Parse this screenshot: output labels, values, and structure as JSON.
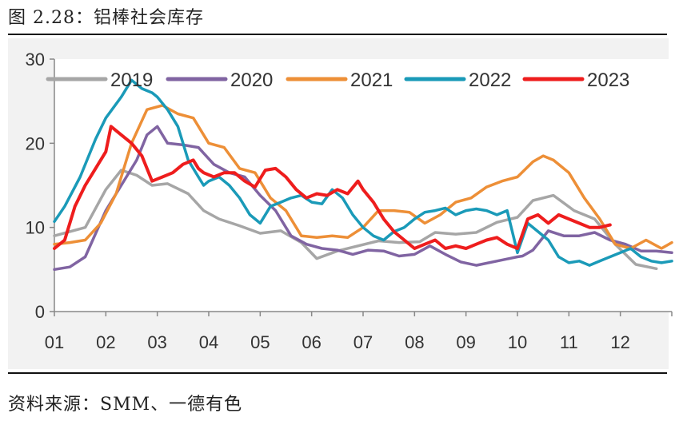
{
  "figure": {
    "title": "图 2.28：铝棒社会库存",
    "source": "资料来源：SMM、一德有色"
  },
  "chart_data": {
    "type": "line",
    "title": "铝棒社会库存",
    "xlabel": "",
    "ylabel": "",
    "ylim": [
      0,
      30
    ],
    "xlim": [
      1,
      13
    ],
    "yticks": [
      0,
      10,
      20,
      30
    ],
    "categories": [
      "01",
      "02",
      "03",
      "04",
      "05",
      "06",
      "07",
      "08",
      "09",
      "10",
      "11",
      "12"
    ],
    "series": [
      {
        "name": "2019",
        "color": "#A6A6A6",
        "x": [
          1.0,
          1.3,
          1.6,
          2.0,
          2.3,
          2.6,
          2.9,
          3.2,
          3.6,
          3.9,
          4.2,
          4.6,
          5.0,
          5.4,
          5.8,
          6.1,
          6.5,
          6.9,
          7.3,
          7.7,
          8.1,
          8.4,
          8.8,
          9.2,
          9.6,
          10.0,
          10.3,
          10.7,
          11.1,
          11.5,
          11.9,
          12.3,
          12.7
        ],
        "values": [
          9.0,
          9.5,
          10.0,
          14.5,
          16.8,
          16.2,
          15.0,
          15.2,
          14.0,
          12.0,
          11.0,
          10.2,
          9.3,
          9.6,
          8.2,
          6.3,
          7.2,
          7.8,
          8.4,
          8.2,
          8.3,
          9.4,
          9.2,
          9.4,
          10.6,
          11.2,
          13.2,
          13.8,
          12.0,
          11.0,
          8.0,
          5.6,
          5.1
        ]
      },
      {
        "name": "2020",
        "color": "#8064A2",
        "x": [
          1.0,
          1.3,
          1.6,
          2.0,
          2.3,
          2.6,
          2.8,
          3.0,
          3.2,
          3.5,
          3.8,
          4.1,
          4.4,
          4.7,
          5.0,
          5.3,
          5.6,
          5.9,
          6.2,
          6.5,
          6.8,
          7.1,
          7.4,
          7.7,
          8.0,
          8.3,
          8.6,
          8.9,
          9.2,
          9.6,
          10.0,
          10.1,
          10.3,
          10.6,
          10.9,
          11.2,
          11.5,
          11.8,
          12.1,
          12.4,
          12.7,
          13.0
        ],
        "values": [
          5.0,
          5.3,
          6.5,
          12.0,
          15.0,
          18.0,
          21.0,
          22.0,
          20.0,
          19.8,
          19.5,
          17.5,
          16.5,
          16.0,
          13.8,
          12.0,
          9.0,
          8.0,
          7.5,
          7.3,
          6.8,
          7.3,
          7.2,
          6.6,
          6.8,
          7.8,
          6.8,
          5.9,
          5.5,
          6.0,
          6.5,
          6.6,
          7.3,
          9.6,
          9.0,
          9.0,
          9.4,
          8.5,
          8.0,
          7.2,
          7.2,
          7.0
        ]
      },
      {
        "name": "2021",
        "color": "#ED8F37",
        "x": [
          1.0,
          1.3,
          1.6,
          1.9,
          2.2,
          2.5,
          2.8,
          3.1,
          3.4,
          3.7,
          4.0,
          4.3,
          4.6,
          4.9,
          5.2,
          5.5,
          5.8,
          6.1,
          6.4,
          6.7,
          7.0,
          7.3,
          7.6,
          7.9,
          8.2,
          8.5,
          8.8,
          9.1,
          9.4,
          9.7,
          10.0,
          10.3,
          10.5,
          10.7,
          11.0,
          11.3,
          11.6,
          11.9,
          12.2,
          12.5,
          12.8,
          13.0
        ],
        "values": [
          8.0,
          8.2,
          8.5,
          10.5,
          14.0,
          20.0,
          24.0,
          24.5,
          23.5,
          23.0,
          20.0,
          19.5,
          17.0,
          16.5,
          13.5,
          12.0,
          9.0,
          8.8,
          9.0,
          8.8,
          10.0,
          12.0,
          12.0,
          11.8,
          10.5,
          11.5,
          13.0,
          13.5,
          14.8,
          15.5,
          16.0,
          17.8,
          18.5,
          18.0,
          16.5,
          13.5,
          11.0,
          8.0,
          7.5,
          8.5,
          7.5,
          8.2
        ]
      },
      {
        "name": "2022",
        "color": "#1A9AB8",
        "x": [
          1.0,
          1.2,
          1.5,
          1.8,
          2.0,
          2.3,
          2.5,
          2.7,
          2.9,
          3.0,
          3.2,
          3.4,
          3.6,
          3.8,
          3.9,
          4.0,
          4.2,
          4.4,
          4.6,
          4.8,
          5.0,
          5.2,
          5.4,
          5.6,
          5.8,
          6.0,
          6.2,
          6.4,
          6.6,
          6.8,
          7.0,
          7.2,
          7.4,
          7.6,
          7.8,
          8.0,
          8.2,
          8.4,
          8.6,
          8.8,
          9.0,
          9.2,
          9.4,
          9.6,
          9.8,
          10.0,
          10.2,
          10.4,
          10.6,
          10.8,
          11.0,
          11.2,
          11.4,
          11.6,
          11.8,
          12.0,
          12.2,
          12.4,
          12.6,
          12.8,
          13.0
        ],
        "values": [
          10.7,
          12.5,
          16.0,
          20.5,
          23.0,
          25.5,
          27.5,
          26.5,
          26.0,
          25.5,
          24.0,
          22.0,
          18.0,
          16.0,
          15.0,
          15.5,
          16.0,
          15.0,
          13.5,
          11.5,
          10.5,
          12.5,
          13.0,
          13.5,
          13.8,
          13.0,
          12.8,
          14.5,
          13.5,
          11.5,
          10.0,
          9.0,
          8.5,
          9.5,
          10.0,
          11.0,
          11.8,
          12.0,
          12.3,
          11.5,
          12.0,
          12.2,
          12.0,
          11.5,
          12.0,
          7.0,
          10.5,
          9.5,
          8.5,
          6.5,
          5.8,
          6.0,
          5.5,
          6.0,
          6.5,
          7.0,
          7.5,
          6.5,
          6.0,
          5.8,
          6.0
        ]
      },
      {
        "name": "2023",
        "color": "#EE1D1D",
        "x": [
          1.0,
          1.2,
          1.4,
          1.6,
          1.8,
          2.0,
          2.1,
          2.3,
          2.5,
          2.7,
          2.9,
          3.1,
          3.3,
          3.5,
          3.7,
          3.8,
          3.9,
          4.1,
          4.3,
          4.5,
          4.7,
          4.9,
          5.1,
          5.3,
          5.5,
          5.7,
          5.9,
          6.1,
          6.3,
          6.5,
          6.7,
          6.9,
          7.0,
          7.2,
          7.4,
          7.6,
          7.8,
          8.0,
          8.2,
          8.4,
          8.6,
          8.8,
          9.0,
          9.2,
          9.4,
          9.6,
          9.8,
          10.0,
          10.2,
          10.4,
          10.6,
          10.8,
          11.0,
          11.2,
          11.4,
          11.6,
          11.8
        ],
        "values": [
          7.5,
          8.5,
          12.5,
          15.0,
          17.0,
          19.0,
          22.0,
          21.0,
          20.0,
          18.5,
          15.5,
          16.0,
          16.5,
          17.5,
          18.0,
          17.0,
          16.5,
          16.0,
          16.5,
          16.5,
          15.5,
          14.8,
          16.8,
          17.0,
          16.0,
          14.5,
          13.5,
          14.0,
          13.8,
          14.5,
          14.0,
          15.5,
          14.5,
          13.0,
          11.0,
          9.5,
          8.5,
          7.5,
          8.0,
          8.5,
          7.5,
          7.8,
          7.5,
          8.0,
          8.5,
          8.8,
          8.0,
          7.5,
          11.0,
          11.5,
          10.5,
          11.5,
          11.0,
          10.5,
          10.0,
          10.0,
          10.3
        ]
      }
    ]
  }
}
